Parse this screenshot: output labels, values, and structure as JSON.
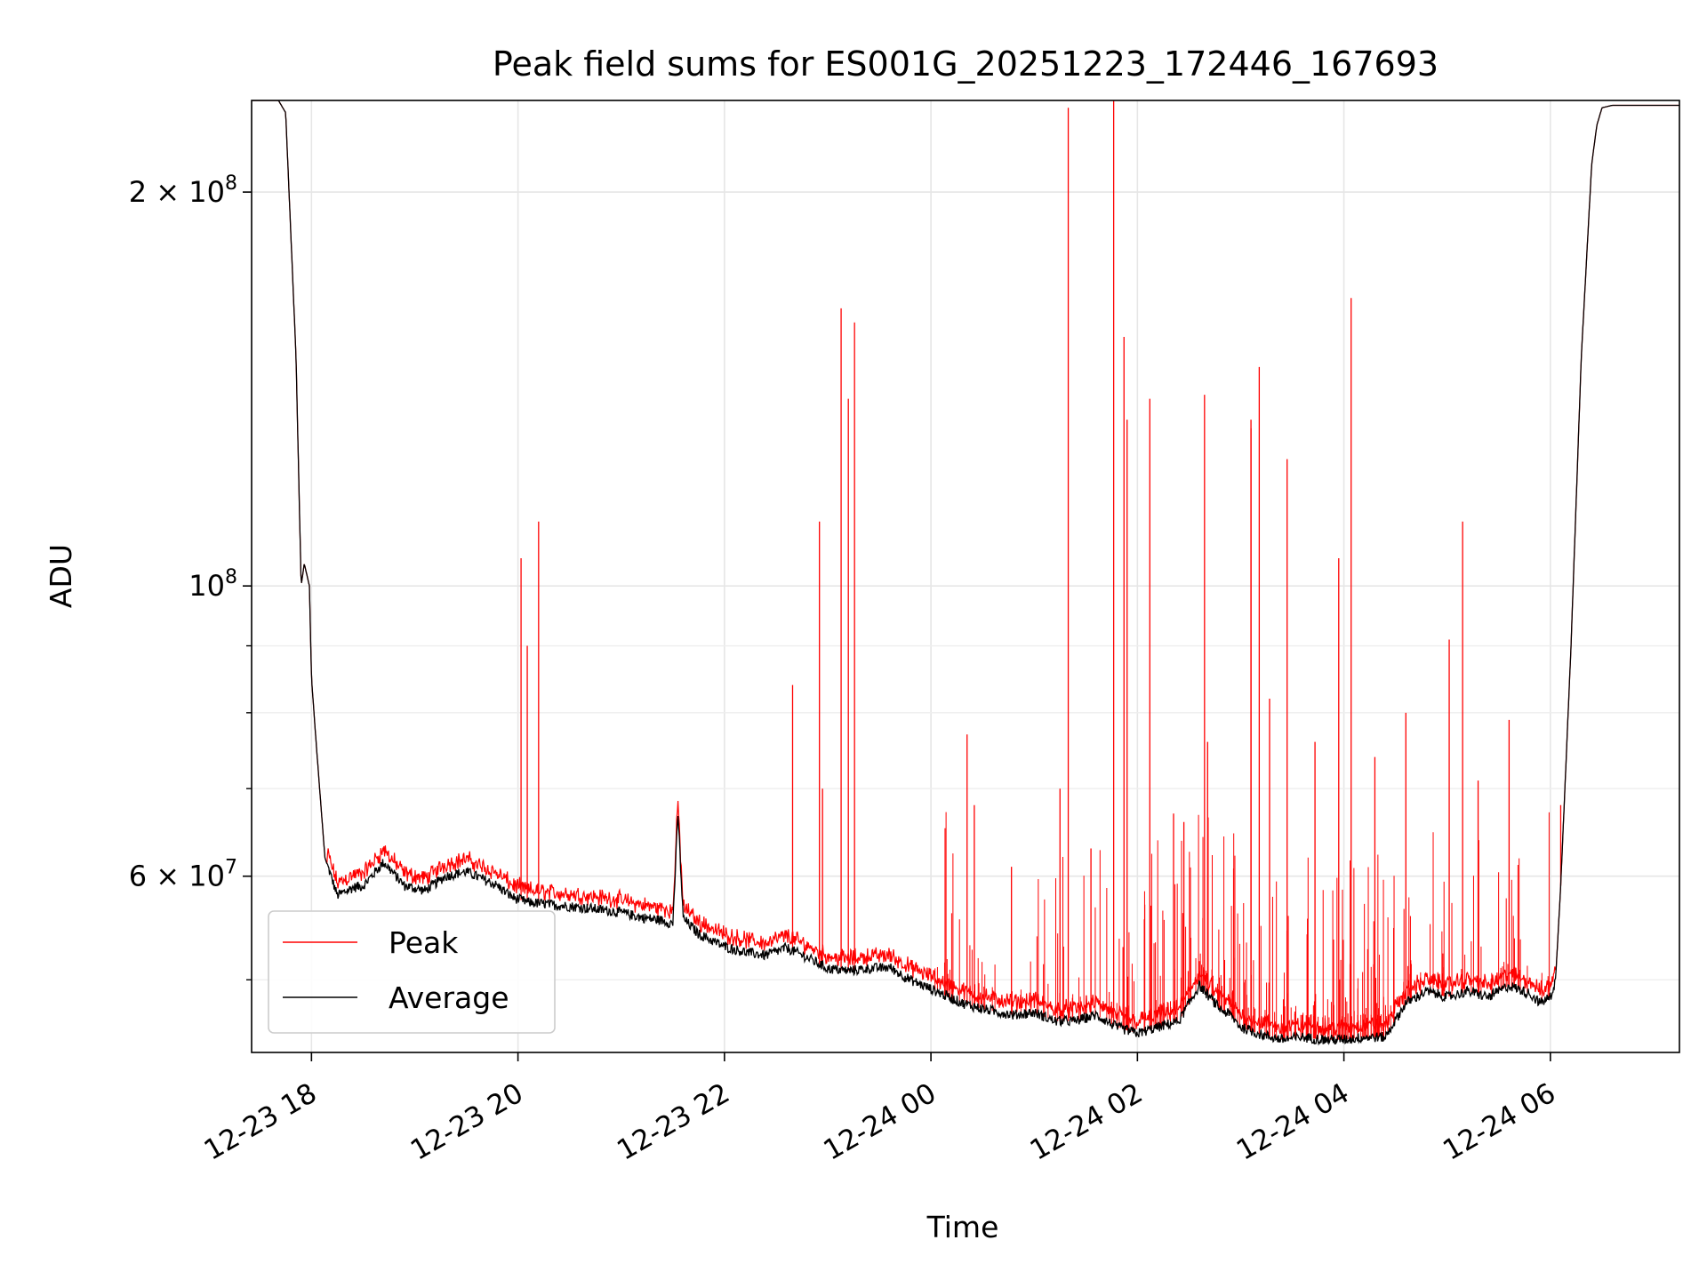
{
  "chart_data": {
    "type": "line",
    "title": "Peak field sums for ES001G_20251223_172446_167693",
    "xlabel": "Time",
    "ylabel": "ADU",
    "yscale": "log",
    "ylim": [
      44000000,
      235000000
    ],
    "xlim_hours": [
      -0.58,
      13.25
    ],
    "x_ticks": [
      {
        "h": 0,
        "label": "12-23 18"
      },
      {
        "h": 2,
        "label": "12-23 20"
      },
      {
        "h": 4,
        "label": "12-23 22"
      },
      {
        "h": 6,
        "label": "12-24 00"
      },
      {
        "h": 8,
        "label": "12-24 02"
      },
      {
        "h": 10,
        "label": "12-24 04"
      },
      {
        "h": 12,
        "label": "12-24 06"
      }
    ],
    "y_ticks": [
      {
        "v": 200000000,
        "base": "2 × 10",
        "exp": "8"
      },
      {
        "v": 100000000,
        "base": "10",
        "exp": "8"
      },
      {
        "v": 60000000,
        "base": "6 × 10",
        "exp": "7"
      }
    ],
    "y_minor_ticks": [
      50000000,
      70000000,
      80000000,
      90000000
    ],
    "grid": true,
    "legend": {
      "position": "lower-left",
      "entries": [
        {
          "label": "Peak",
          "color": "#ff0000"
        },
        {
          "label": "Average",
          "color": "#000000"
        }
      ]
    },
    "series": [
      {
        "name": "Average",
        "color": "#000000",
        "x": [
          -0.58,
          -0.32,
          -0.25,
          -0.15,
          -0.1,
          -0.07,
          -0.02,
          0,
          0.05,
          0.13,
          0.25,
          0.4,
          0.5,
          0.7,
          0.9,
          1.1,
          1.3,
          1.5,
          1.8,
          1.95,
          2.1,
          2.4,
          2.7,
          3,
          3.2,
          3.4,
          3.5,
          3.55,
          3.6,
          3.75,
          4,
          4.2,
          4.4,
          4.6,
          4.8,
          5,
          5.2,
          5.4,
          5.6,
          5.8,
          6,
          6.3,
          6.5,
          6.8,
          7,
          7.2,
          7.4,
          7.6,
          7.8,
          8,
          8.2,
          8.4,
          8.6,
          8.8,
          8.9,
          9,
          9.2,
          9.4,
          9.6,
          9.8,
          10,
          10.2,
          10.4,
          10.6,
          10.8,
          11,
          11.2,
          11.4,
          11.6,
          11.8,
          11.9,
          12,
          12.05,
          12.1,
          12.2,
          12.3,
          12.4,
          12.45,
          12.5,
          12.6,
          13.25
        ],
        "y": [
          235000000,
          235000000,
          230000000,
          150000000,
          100000000,
          104000000,
          100000000,
          85000000,
          75000000,
          62000000,
          58000000,
          58800000,
          59000000,
          61500000,
          59000000,
          58500000,
          60000000,
          60500000,
          59000000,
          57800000,
          57300000,
          57000000,
          56700000,
          56300000,
          55800000,
          55500000,
          55200000,
          67000000,
          55700000,
          54200000,
          53000000,
          52500000,
          52200000,
          52900000,
          52000000,
          51000000,
          50800000,
          51000000,
          51100000,
          50000000,
          49200000,
          48000000,
          47500000,
          47000000,
          47200000,
          46500000,
          46500000,
          47000000,
          46000000,
          45500000,
          46000000,
          46500000,
          49500000,
          47500000,
          47000000,
          46000000,
          45400000,
          45000000,
          45200000,
          45000000,
          45000000,
          45200000,
          45200000,
          48000000,
          49000000,
          48500000,
          49000000,
          48500000,
          49500000,
          48800000,
          48000000,
          48500000,
          50000000,
          59000000,
          90000000,
          150000000,
          210000000,
          225000000,
          232000000,
          233000000,
          233000000
        ]
      },
      {
        "name": "Peak",
        "color": "#ff0000",
        "spikes": [
          {
            "x": 2.03,
            "y": 105000000
          },
          {
            "x": 2.09,
            "y": 90000000
          },
          {
            "x": 2.2,
            "y": 112000000
          },
          {
            "x": 4.66,
            "y": 84000000
          },
          {
            "x": 4.92,
            "y": 112000000
          },
          {
            "x": 4.95,
            "y": 70000000
          },
          {
            "x": 5.13,
            "y": 163000000
          },
          {
            "x": 5.2,
            "y": 139000000
          },
          {
            "x": 5.26,
            "y": 159000000
          },
          {
            "x": 6.35,
            "y": 77000000
          },
          {
            "x": 6.42,
            "y": 68000000
          },
          {
            "x": 6.78,
            "y": 61000000
          },
          {
            "x": 7.25,
            "y": 70000000
          },
          {
            "x": 7.33,
            "y": 232000000
          },
          {
            "x": 7.55,
            "y": 63000000
          },
          {
            "x": 7.77,
            "y": 235000000
          },
          {
            "x": 7.87,
            "y": 155000000
          },
          {
            "x": 7.9,
            "y": 134000000
          },
          {
            "x": 8.12,
            "y": 139000000
          },
          {
            "x": 8.35,
            "y": 67000000
          },
          {
            "x": 8.45,
            "y": 66000000
          },
          {
            "x": 8.65,
            "y": 140000000
          },
          {
            "x": 8.68,
            "y": 76000000
          },
          {
            "x": 9.1,
            "y": 134000000
          },
          {
            "x": 9.1,
            "y": 132000000
          },
          {
            "x": 9.18,
            "y": 147000000
          },
          {
            "x": 9.28,
            "y": 82000000
          },
          {
            "x": 9.45,
            "y": 125000000
          },
          {
            "x": 9.72,
            "y": 76000000
          },
          {
            "x": 9.95,
            "y": 105000000
          },
          {
            "x": 10.07,
            "y": 166000000
          },
          {
            "x": 10.3,
            "y": 74000000
          },
          {
            "x": 10.6,
            "y": 80000000
          },
          {
            "x": 11.02,
            "y": 91000000
          },
          {
            "x": 11.15,
            "y": 112000000
          },
          {
            "x": 11.3,
            "y": 71000000
          },
          {
            "x": 11.6,
            "y": 79000000
          },
          {
            "x": 12.1,
            "y": 68000000
          }
        ]
      }
    ]
  }
}
